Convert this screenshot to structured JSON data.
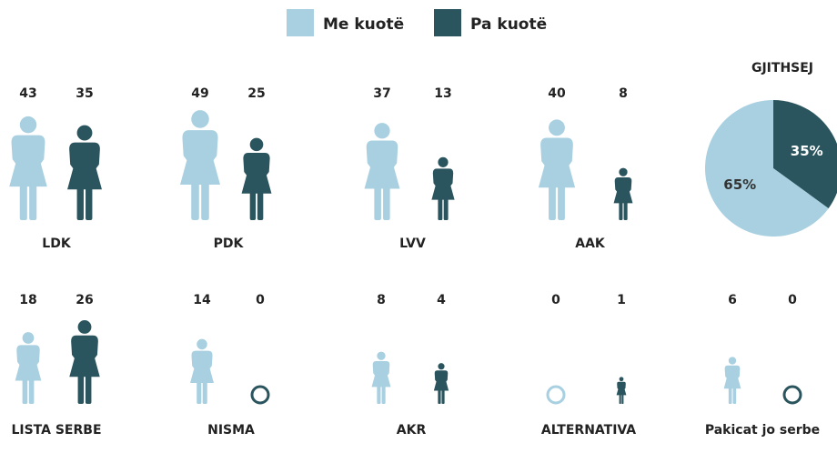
{
  "chart_data": [
    {
      "type": "pictogram",
      "categories": [
        "LDK",
        "PDK",
        "LVV",
        "AAK",
        "LISTA SERBE",
        "NISMA",
        "AKR",
        "ALTERNATIVA",
        "Pakicat jo serbe"
      ],
      "series": [
        {
          "name": "Me kuotë",
          "color": "#a8d0e1",
          "values": [
            43,
            49,
            37,
            40,
            18,
            14,
            8,
            0,
            6
          ]
        },
        {
          "name": "Pa kuotë",
          "color": "#2b555e",
          "values": [
            35,
            25,
            13,
            8,
            26,
            0,
            4,
            1,
            0
          ]
        }
      ]
    },
    {
      "type": "pie",
      "title": "GJITHSEJ",
      "values": [
        65,
        35
      ],
      "value_labels": [
        "65%",
        "35%"
      ],
      "colors": [
        "#a8d0e1",
        "#2b555e"
      ]
    }
  ]
}
